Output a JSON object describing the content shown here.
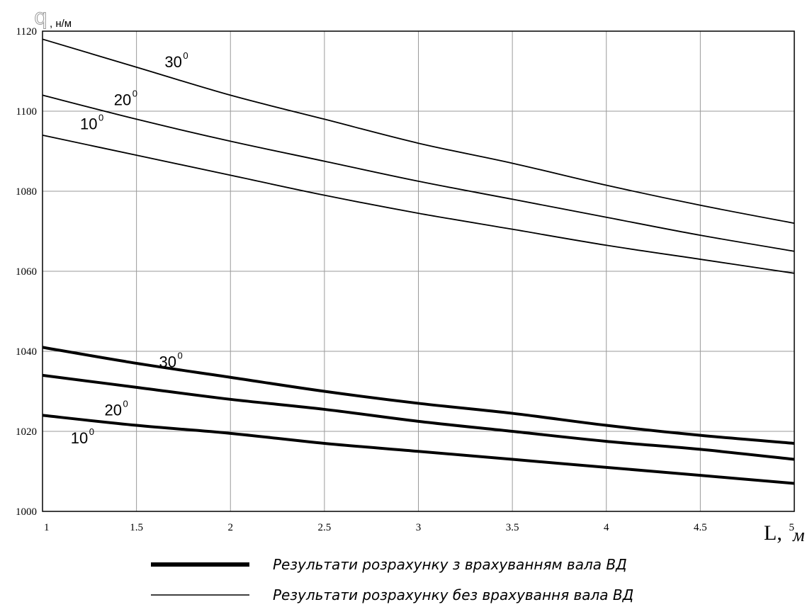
{
  "chart_data": {
    "type": "line",
    "ylabel_symbol": "q",
    "ylabel_unit": ", н/м",
    "xlabel_symbol": "L,",
    "xlabel_unit": "м",
    "xlim": [
      1,
      5
    ],
    "ylim": [
      1000,
      1120
    ],
    "xticks": [
      "1",
      "1.5",
      "2",
      "2.5",
      "3",
      "3.5",
      "4",
      "4.5",
      "5"
    ],
    "yticks": [
      "1000",
      "1020",
      "1040",
      "1060",
      "1080",
      "1100",
      "1120"
    ],
    "grid": true,
    "x": [
      1,
      1.5,
      2,
      2.5,
      3,
      3.5,
      4,
      4.5,
      5
    ],
    "series": [
      {
        "name": "30",
        "group": "without",
        "values": [
          1118,
          1111,
          1104,
          1098,
          1092,
          1087,
          1081.5,
          1076.5,
          1072
        ],
        "label_at": [
          1.65,
          1111
        ],
        "sup": "0"
      },
      {
        "name": "20",
        "group": "without",
        "values": [
          1104,
          1098,
          1092.5,
          1087.5,
          1082.5,
          1078,
          1073.5,
          1069,
          1065
        ],
        "label_at": [
          1.38,
          1101.5
        ],
        "sup": "0"
      },
      {
        "name": "10",
        "group": "without",
        "values": [
          1094,
          1089,
          1084,
          1079,
          1074.5,
          1070.5,
          1066.5,
          1063,
          1059.5
        ],
        "label_at": [
          1.2,
          1095.5
        ],
        "sup": "0"
      },
      {
        "name": "30",
        "group": "with",
        "values": [
          1041,
          1037,
          1033.5,
          1030,
          1027,
          1024.5,
          1021.5,
          1019,
          1017
        ],
        "label_at": [
          1.62,
          1036
        ],
        "sup": "0"
      },
      {
        "name": "20",
        "group": "with",
        "values": [
          1034,
          1031,
          1028,
          1025.5,
          1022.5,
          1020,
          1017.5,
          1015.5,
          1013
        ],
        "label_at": [
          1.33,
          1024
        ],
        "sup": "0"
      },
      {
        "name": "10",
        "group": "with",
        "values": [
          1024,
          1021.5,
          1019.5,
          1017,
          1015,
          1013,
          1011,
          1009,
          1007
        ],
        "label_at": [
          1.15,
          1017
        ],
        "sup": "0"
      }
    ],
    "legend": {
      "position": "bottom",
      "entries": [
        {
          "group": "with",
          "text": "Результати розрахунку  з врахуванням вала ВД"
        },
        {
          "group": "without",
          "text": "Результати розрахунку  без врахування вала ВД"
        }
      ]
    },
    "line_widths": {
      "with": 4,
      "without": 1.8
    }
  }
}
